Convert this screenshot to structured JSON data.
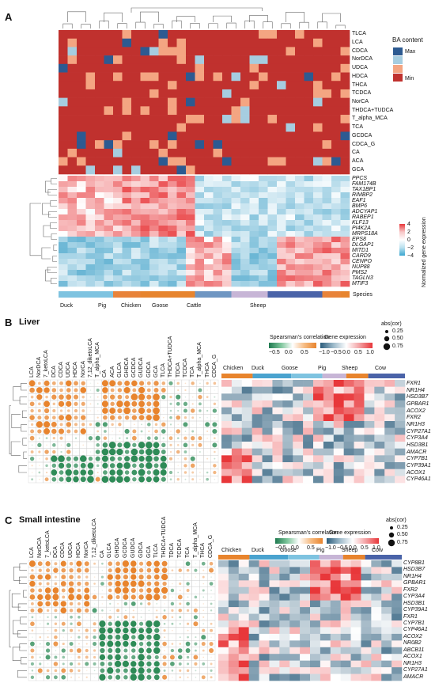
{
  "panelA": {
    "letter": "A",
    "ba_rows": [
      "TLCA",
      "LCA",
      "CDCA",
      "NorDCA",
      "UDCA",
      "HDCA",
      "THCA",
      "TCDCA",
      "NorCA",
      "THDCA+TUDCA",
      "T_alpha_MCA",
      "TCA",
      "GCDCA",
      "CDCA_G",
      "CA",
      "ACA",
      "GCA"
    ],
    "genes": [
      "PPCS",
      "FAM174B",
      "TAX1BP1",
      "RIMBP2",
      "EAF1",
      "BMP6",
      "ADCYAP1",
      "RABEP1",
      "KLF13",
      "PI4K2A",
      "MRPS18A",
      "EPS8",
      "DLGAP1",
      "MITD1",
      "CARD9",
      "CENPO",
      "NUP88",
      "PMS2",
      "TAGLN3",
      "MTIF3"
    ],
    "species_label": "Species",
    "species_names": [
      "Duck",
      "Pig",
      "Chicken",
      "Goose",
      "Cattle",
      "Sheep"
    ],
    "ba_legend": {
      "title": "BA content",
      "max": "Max",
      "min": "Min"
    },
    "expr_legend": {
      "title": "Normalized gene expression",
      "ticks": [
        "4",
        "2",
        "0",
        "−2",
        "−4"
      ]
    }
  },
  "panelB": {
    "letter": "B",
    "title": "Liver",
    "ba_cols": [
      "LCA",
      "NorDCA",
      "7_ketoLCA",
      "DCA",
      "CDCA",
      "UDCA",
      "HDCA",
      "NorCA",
      "7,12_diketoLCA",
      "T_alpha_MCA",
      "CA",
      "ACA",
      "GLCA",
      "GHDCA",
      "GCDCA",
      "GUDCA",
      "GDCA",
      "GCA",
      "TLCA",
      "THDCA+TUDCA",
      "TDCA",
      "TCDCA",
      "TCA",
      "T_alpha_MCA",
      "THCA",
      "CDCA_G"
    ],
    "genes": [
      "FXR1",
      "NR1H4",
      "HSD3B7",
      "GPBAR1",
      "ACOX2",
      "FXR2",
      "NR1H3",
      "CYP27A1",
      "CYP3A4",
      "HSD3B1",
      "AMACR",
      "CYP7B1",
      "CYP39A1",
      "ACOX1",
      "CYP46A1"
    ],
    "species_groups": [
      "Chicken",
      "Duck",
      "Goose",
      "Pig",
      "Sheep",
      "Cow"
    ],
    "legend": {
      "spearman": "Spearsman's correlation",
      "spear_ticks": [
        "−0.5",
        "0.0",
        "0.5"
      ],
      "expr": "Gene expression",
      "expr_ticks": [
        "−1.0",
        "−0.5",
        "0.0",
        "0.5",
        "1.0"
      ],
      "abs_title": "abs(cor)",
      "abs_values": [
        "0.25",
        "0.50",
        "0.75"
      ]
    }
  },
  "panelC": {
    "letter": "C",
    "title": "Small intestine",
    "ba_cols": [
      "LCA",
      "NorDCA",
      "7_ketoLCA",
      "DCA",
      "CDCA",
      "UDCA",
      "HDCA",
      "NorCA",
      "7,12_diketoLCA",
      "CA",
      "GLCA",
      "GHDCA",
      "GCDCA",
      "GUDCA",
      "GDCA",
      "GCA",
      "TLCA",
      "THDCA+TUDCA",
      "TDCA",
      "TCDCA",
      "TCA",
      "T_alpha_MCA",
      "THCA",
      "CDCA_G"
    ],
    "genes": [
      "CYP8B1",
      "HSD3B7",
      "NR1H4",
      "GPBAR1",
      "FXR2",
      "CYP3A4",
      "HSD3B1",
      "CYP39A1",
      "FXR1",
      "CYP7B1",
      "CYP46A1",
      "ACOX2",
      "NR0B2",
      "ABCB11",
      "ACOX1",
      "NR1H3",
      "CYP27A1",
      "AMACR"
    ],
    "species_groups": [
      "Chicken",
      "Duck",
      "Goose",
      "Pig",
      "Sheep",
      "Cow"
    ],
    "legend": {
      "spearman": "Spearsman's correlation",
      "spear_ticks": [
        "−0.5",
        "0.0",
        "0.5"
      ],
      "expr": "Gene expression",
      "expr_ticks": [
        "−1.0",
        "−0.5",
        "0.0",
        "0.5",
        "1.0"
      ],
      "abs_title": "abs(cor)",
      "abs_values": [
        "0.25",
        "0.50",
        "0.75"
      ]
    }
  },
  "colors": {
    "red": "#c0312e",
    "salmon": "#f4a582",
    "lightblue": "#a6cde0",
    "navy": "#2d5a91",
    "orange": "#e8842d",
    "green": "#2e8b57",
    "heat_low": "#5aaed0",
    "heat_high": "#e8373a",
    "species": {
      "Duck": "#7ec3e0",
      "Pig": "#e8833a",
      "Chicken": "#e7842e",
      "Goose": "#6f96c2",
      "Cattle": "#c7b5d6",
      "Sheep": "#4a63a8",
      "Cow": "#4a63a8"
    }
  }
}
